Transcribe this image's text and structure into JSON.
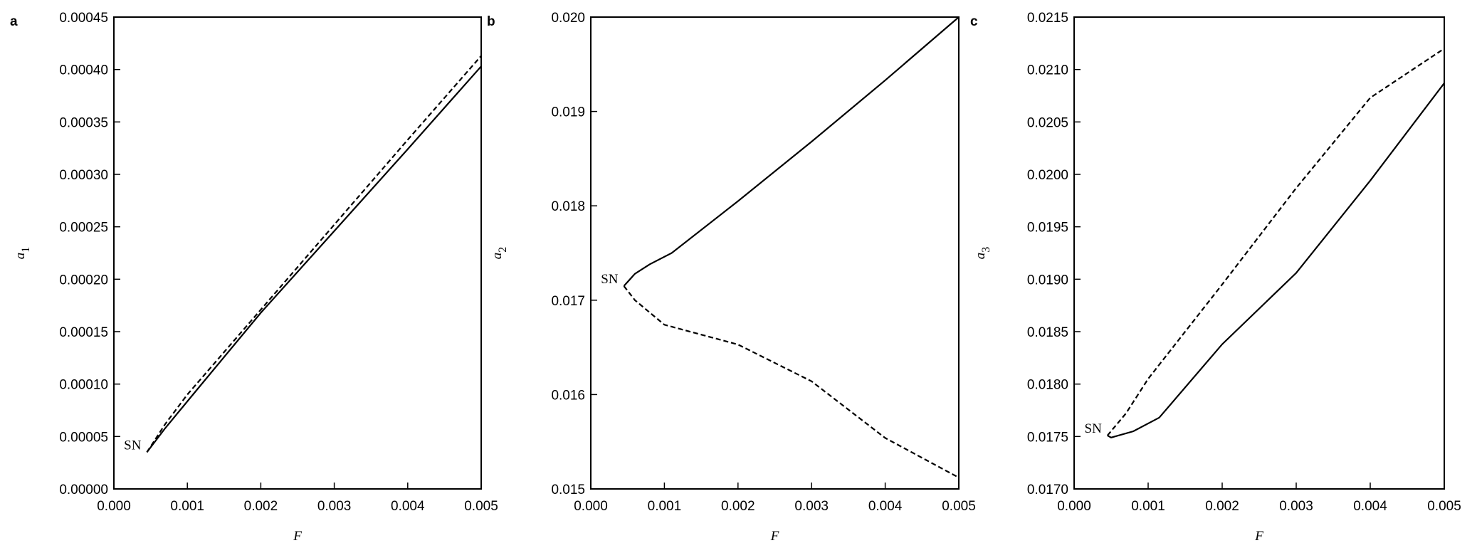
{
  "chart_data": [
    {
      "type": "line",
      "panel": "a",
      "xlabel": "F",
      "ylabel": "a",
      "ylabel_sub": "1",
      "annotation": "SN",
      "xlim": [
        0,
        0.005
      ],
      "xticks": [
        {
          "value": 0,
          "label": "0.000"
        },
        0.001,
        0.002,
        0.003,
        0.004,
        0.005
      ],
      "ylim": [
        0,
        0.00045
      ],
      "yticks": [
        {
          "value": 0,
          "label": "0.00000"
        },
        5e-05,
        {
          "value": 0.0001,
          "label": "0.00010"
        },
        0.00015,
        {
          "value": 0.0002,
          "label": "0.00020"
        },
        0.00025,
        {
          "value": 0.0003,
          "label": "0.00030"
        },
        0.00035,
        {
          "value": 0.0004,
          "label": "0.00040"
        },
        0.00045
      ],
      "series": [
        {
          "style": "solid",
          "color": "#000000",
          "x": [
            0.00045,
            0.0007,
            0.0011,
            0.002,
            0.003,
            0.004,
            0.005
          ],
          "values": [
            3.5e-05,
            5.8e-05,
            9.2e-05,
            0.000168,
            0.000246,
            0.000324,
            0.000403
          ]
        },
        {
          "style": "dashed",
          "color": "#000000",
          "x": [
            0.00045,
            0.0007,
            0.001,
            0.002,
            0.003,
            0.004,
            0.005
          ],
          "values": [
            3.5e-05,
            6.2e-05,
            9e-05,
            0.000171,
            0.000252,
            0.000333,
            0.000413
          ]
        }
      ]
    },
    {
      "type": "line",
      "panel": "b",
      "xlabel": "F",
      "ylabel": "a",
      "ylabel_sub": "2",
      "annotation": "SN",
      "xlim": [
        0,
        0.005
      ],
      "xticks": [
        {
          "value": 0,
          "label": "0.000"
        },
        0.001,
        0.002,
        0.003,
        0.004,
        0.005
      ],
      "ylim": [
        0.015,
        0.02
      ],
      "yticks": [
        0.015,
        0.016,
        0.017,
        0.018,
        0.019,
        {
          "value": 0.02,
          "label": "0.020"
        }
      ],
      "series": [
        {
          "style": "solid",
          "color": "#000000",
          "x": [
            0.00045,
            0.0006,
            0.0008,
            0.0011,
            0.002,
            0.003,
            0.004,
            0.005
          ],
          "values": [
            0.01715,
            0.01728,
            0.01738,
            0.0175,
            0.01805,
            0.01868,
            0.01933,
            0.02
          ]
        },
        {
          "style": "dashed",
          "color": "#000000",
          "x": [
            0.00045,
            0.0006,
            0.001,
            0.002,
            0.003,
            0.004,
            0.005
          ],
          "values": [
            0.01715,
            0.017,
            0.01674,
            0.01653,
            0.01614,
            0.01554,
            0.01512
          ]
        }
      ]
    },
    {
      "type": "line",
      "panel": "c",
      "xlabel": "F",
      "ylabel": "a",
      "ylabel_sub": "3",
      "annotation": "SN",
      "xlim": [
        0,
        0.005
      ],
      "xticks": [
        {
          "value": 0,
          "label": "0.000"
        },
        0.001,
        0.002,
        0.003,
        0.004,
        0.005
      ],
      "ylim": [
        0.017,
        0.0215
      ],
      "yticks": [
        {
          "value": 0.017,
          "label": "0.0170"
        },
        0.0175,
        {
          "value": 0.018,
          "label": "0.0180"
        },
        0.0185,
        {
          "value": 0.019,
          "label": "0.0190"
        },
        0.0195,
        {
          "value": 0.02,
          "label": "0.0200"
        },
        0.0205,
        {
          "value": 0.021,
          "label": "0.0210"
        },
        0.0215
      ],
      "series": [
        {
          "style": "solid",
          "color": "#000000",
          "x": [
            0.00045,
            0.0005,
            0.0008,
            0.00115,
            0.002,
            0.003,
            0.004,
            0.005
          ],
          "values": [
            0.01751,
            0.01749,
            0.01755,
            0.01768,
            0.01838,
            0.01906,
            0.01994,
            0.02087
          ]
        },
        {
          "style": "dashed",
          "color": "#000000",
          "x": [
            0.00045,
            0.0007,
            0.001,
            0.002,
            0.003,
            0.004,
            0.005
          ],
          "values": [
            0.01751,
            0.01772,
            0.01805,
            0.01895,
            0.01987,
            0.02073,
            0.0212
          ]
        }
      ]
    }
  ]
}
